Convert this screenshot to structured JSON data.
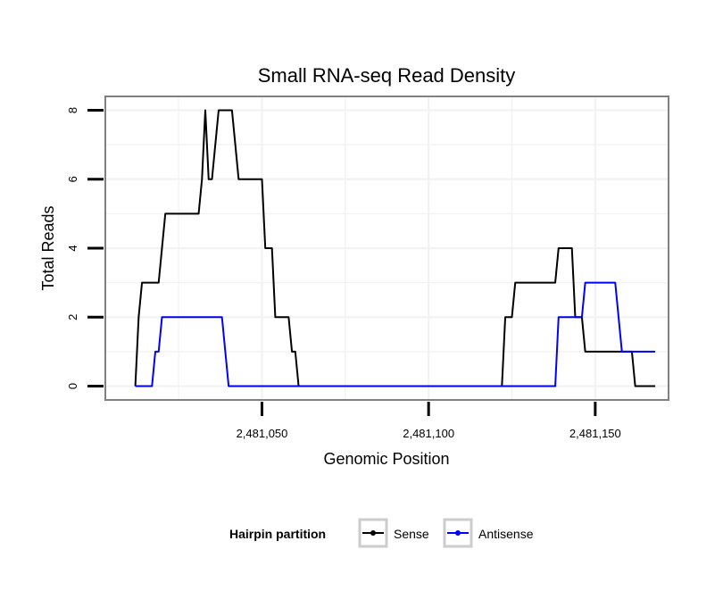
{
  "chart_data": {
    "type": "line",
    "title": "Small RNA-seq Read Density",
    "xlabel": "Genomic Position",
    "ylabel": "Total Reads",
    "xlim": [
      2481003,
      2481172
    ],
    "ylim": [
      -0.4,
      8.4
    ],
    "x_ticks": [
      2481050,
      2481100,
      2481150
    ],
    "x_tick_labels": [
      "2,481,050",
      "2,481,100",
      "2,481,150"
    ],
    "y_ticks": [
      0,
      2,
      4,
      6,
      8
    ],
    "y_tick_labels": [
      "0",
      "2",
      "4",
      "6",
      "8"
    ],
    "grid": true,
    "legend": {
      "title": "Hairpin partition",
      "placement": "bottom"
    },
    "series": [
      {
        "name": "Sense",
        "color": "#000000",
        "points": [
          [
            2481012,
            0
          ],
          [
            2481013,
            2
          ],
          [
            2481014,
            3
          ],
          [
            2481019,
            3
          ],
          [
            2481021,
            5
          ],
          [
            2481031,
            5
          ],
          [
            2481032,
            6
          ],
          [
            2481033,
            8
          ],
          [
            2481034,
            6
          ],
          [
            2481035,
            6
          ],
          [
            2481037,
            8
          ],
          [
            2481041,
            8
          ],
          [
            2481043,
            6
          ],
          [
            2481050,
            6
          ],
          [
            2481051,
            4
          ],
          [
            2481053,
            4
          ],
          [
            2481054,
            2
          ],
          [
            2481058,
            2
          ],
          [
            2481059,
            1
          ],
          [
            2481060,
            1
          ],
          [
            2481061,
            0
          ],
          [
            2481122,
            0
          ],
          [
            2481123,
            2
          ],
          [
            2481125,
            2
          ],
          [
            2481126,
            3
          ],
          [
            2481138,
            3
          ],
          [
            2481139,
            4
          ],
          [
            2481143,
            4
          ],
          [
            2481144,
            2
          ],
          [
            2481146,
            2
          ],
          [
            2481147,
            1
          ],
          [
            2481161,
            1
          ],
          [
            2481162,
            0
          ],
          [
            2481168,
            0
          ]
        ]
      },
      {
        "name": "Antisense",
        "color": "#0000ff",
        "points": [
          [
            2481012,
            0
          ],
          [
            2481017,
            0
          ],
          [
            2481018,
            1
          ],
          [
            2481019,
            1
          ],
          [
            2481020,
            2
          ],
          [
            2481038,
            2
          ],
          [
            2481039,
            1
          ],
          [
            2481040,
            0
          ],
          [
            2481138,
            0
          ],
          [
            2481139,
            2
          ],
          [
            2481146,
            2
          ],
          [
            2481147,
            3
          ],
          [
            2481156,
            3
          ],
          [
            2481158,
            1
          ],
          [
            2481168,
            1
          ]
        ]
      }
    ]
  }
}
